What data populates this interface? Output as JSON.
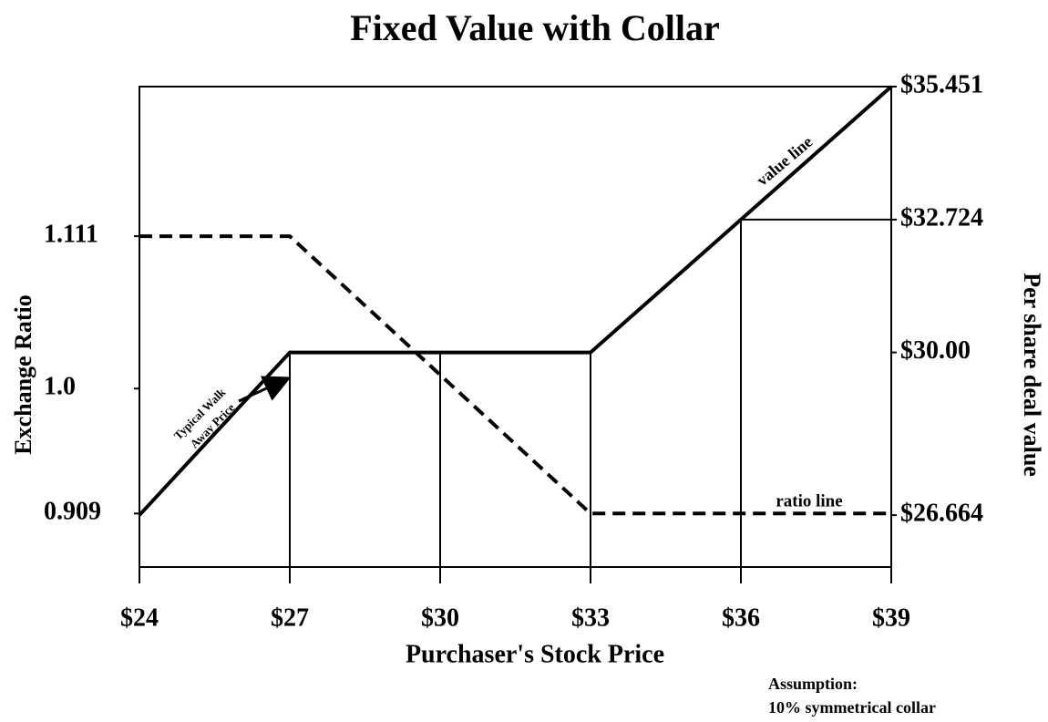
{
  "chart_data": {
    "type": "line",
    "title": "Fixed Value with Collar",
    "xlabel": "Purchaser's Stock Price",
    "ylabel": "Exchange Ratio",
    "y2label": "Per share deal value",
    "x": [
      24,
      27,
      33,
      36,
      39
    ],
    "series": [
      {
        "name": "ratio line",
        "color": "#000000",
        "dashed": true,
        "axis": "y",
        "values": [
          1.111,
          1.111,
          0.909,
          0.909,
          0.909
        ]
      },
      {
        "name": "value line",
        "color": "#000000",
        "dashed": false,
        "axis": "y2",
        "values": [
          26.664,
          30,
          30,
          32.724,
          35.451
        ]
      }
    ],
    "xlim": [
      24,
      39
    ],
    "xticks": [
      {
        "value": 24,
        "label": "$24"
      },
      {
        "value": 27,
        "label": "$27"
      },
      {
        "value": 30,
        "label": "$30"
      },
      {
        "value": 33,
        "label": "$33"
      },
      {
        "value": 36,
        "label": "$36"
      },
      {
        "value": 39,
        "label": "$39"
      }
    ],
    "ylim": [
      0.87,
      1.22
    ],
    "yticks": [
      0.909,
      {
        "value": 1,
        "label": "1.0"
      },
      1.111
    ],
    "y2lim": [
      25.6,
      35.451
    ],
    "y2ticks": [
      {
        "value": 26.664,
        "label": "$26.664"
      },
      {
        "value": 30,
        "label": "$30.00"
      },
      {
        "value": 32.724,
        "label": "$32.724"
      },
      {
        "value": 35.451,
        "label": "$35.451"
      }
    ],
    "annotations": [
      "Typical Walk",
      "Away Price",
      "Assumption:",
      "10% symmetrical collar"
    ]
  }
}
